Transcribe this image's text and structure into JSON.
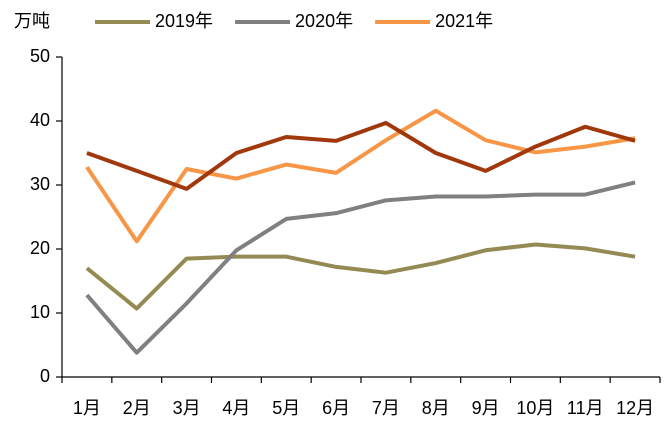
{
  "chart_data": {
    "type": "line",
    "y_label": "万吨",
    "categories": [
      "1月",
      "2月",
      "3月",
      "4月",
      "5月",
      "6月",
      "7月",
      "8月",
      "9月",
      "10月",
      "11月",
      "12月"
    ],
    "series": [
      {
        "name": "2019年",
        "color": "#948a54",
        "values": [
          17,
          10.7,
          18.5,
          18.8,
          18.8,
          17.2,
          16.3,
          17.8,
          19.8,
          20.7,
          20.1,
          18.8
        ]
      },
      {
        "name": "2020年",
        "color": "#808080",
        "values": [
          12.8,
          3.8,
          11.5,
          19.8,
          24.7,
          25.6,
          27.6,
          28.2,
          28.2,
          28.5,
          28.5,
          30.4
        ]
      },
      {
        "name": "2021年",
        "color": "#f79646",
        "values": [
          32.8,
          21.2,
          32.5,
          31,
          33.2,
          31.9,
          37,
          41.6,
          37,
          35.1,
          36,
          37.3
        ]
      },
      {
        "color": "#a0380c",
        "values": [
          35,
          32.2,
          29.4,
          35,
          37.5,
          36.9,
          39.7,
          35,
          32.2,
          36,
          39.1,
          36.9
        ]
      }
    ],
    "ylim": [
      0,
      50
    ],
    "yticks": [
      0,
      10,
      20,
      30,
      40,
      50
    ],
    "grid": false
  }
}
